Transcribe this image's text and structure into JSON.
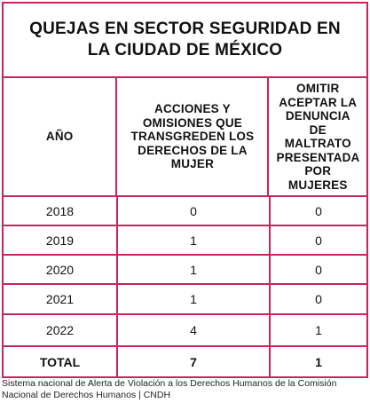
{
  "title": "QUEJAS EN SECTOR SEGURIDAD EN LA CIUDAD DE MÉXICO",
  "columns": [
    "AÑO",
    "ACCIONES Y OMISIONES QUE TRANSGREDEN LOS DERECHOS DE LA MUJER",
    "OMITIR ACEPTAR LA DENUNCIA DE MALTRATO PRESENTADA POR MUJERES"
  ],
  "rows": [
    [
      "2018",
      "0",
      "0"
    ],
    [
      "2019",
      "1",
      "0"
    ],
    [
      "2020",
      "1",
      "0"
    ],
    [
      "2021",
      "1",
      "0"
    ],
    [
      "2022",
      "4",
      "1"
    ]
  ],
  "total": [
    "TOTAL",
    "7",
    "1"
  ],
  "source": "Sistema nacional de Alerta de Violación a los Derechos Humanos de la Comisión Nacional de Derechos Humanos | CNDH",
  "colors": {
    "border": "#c8245a",
    "text": "#111111",
    "background": "#ffffff"
  }
}
